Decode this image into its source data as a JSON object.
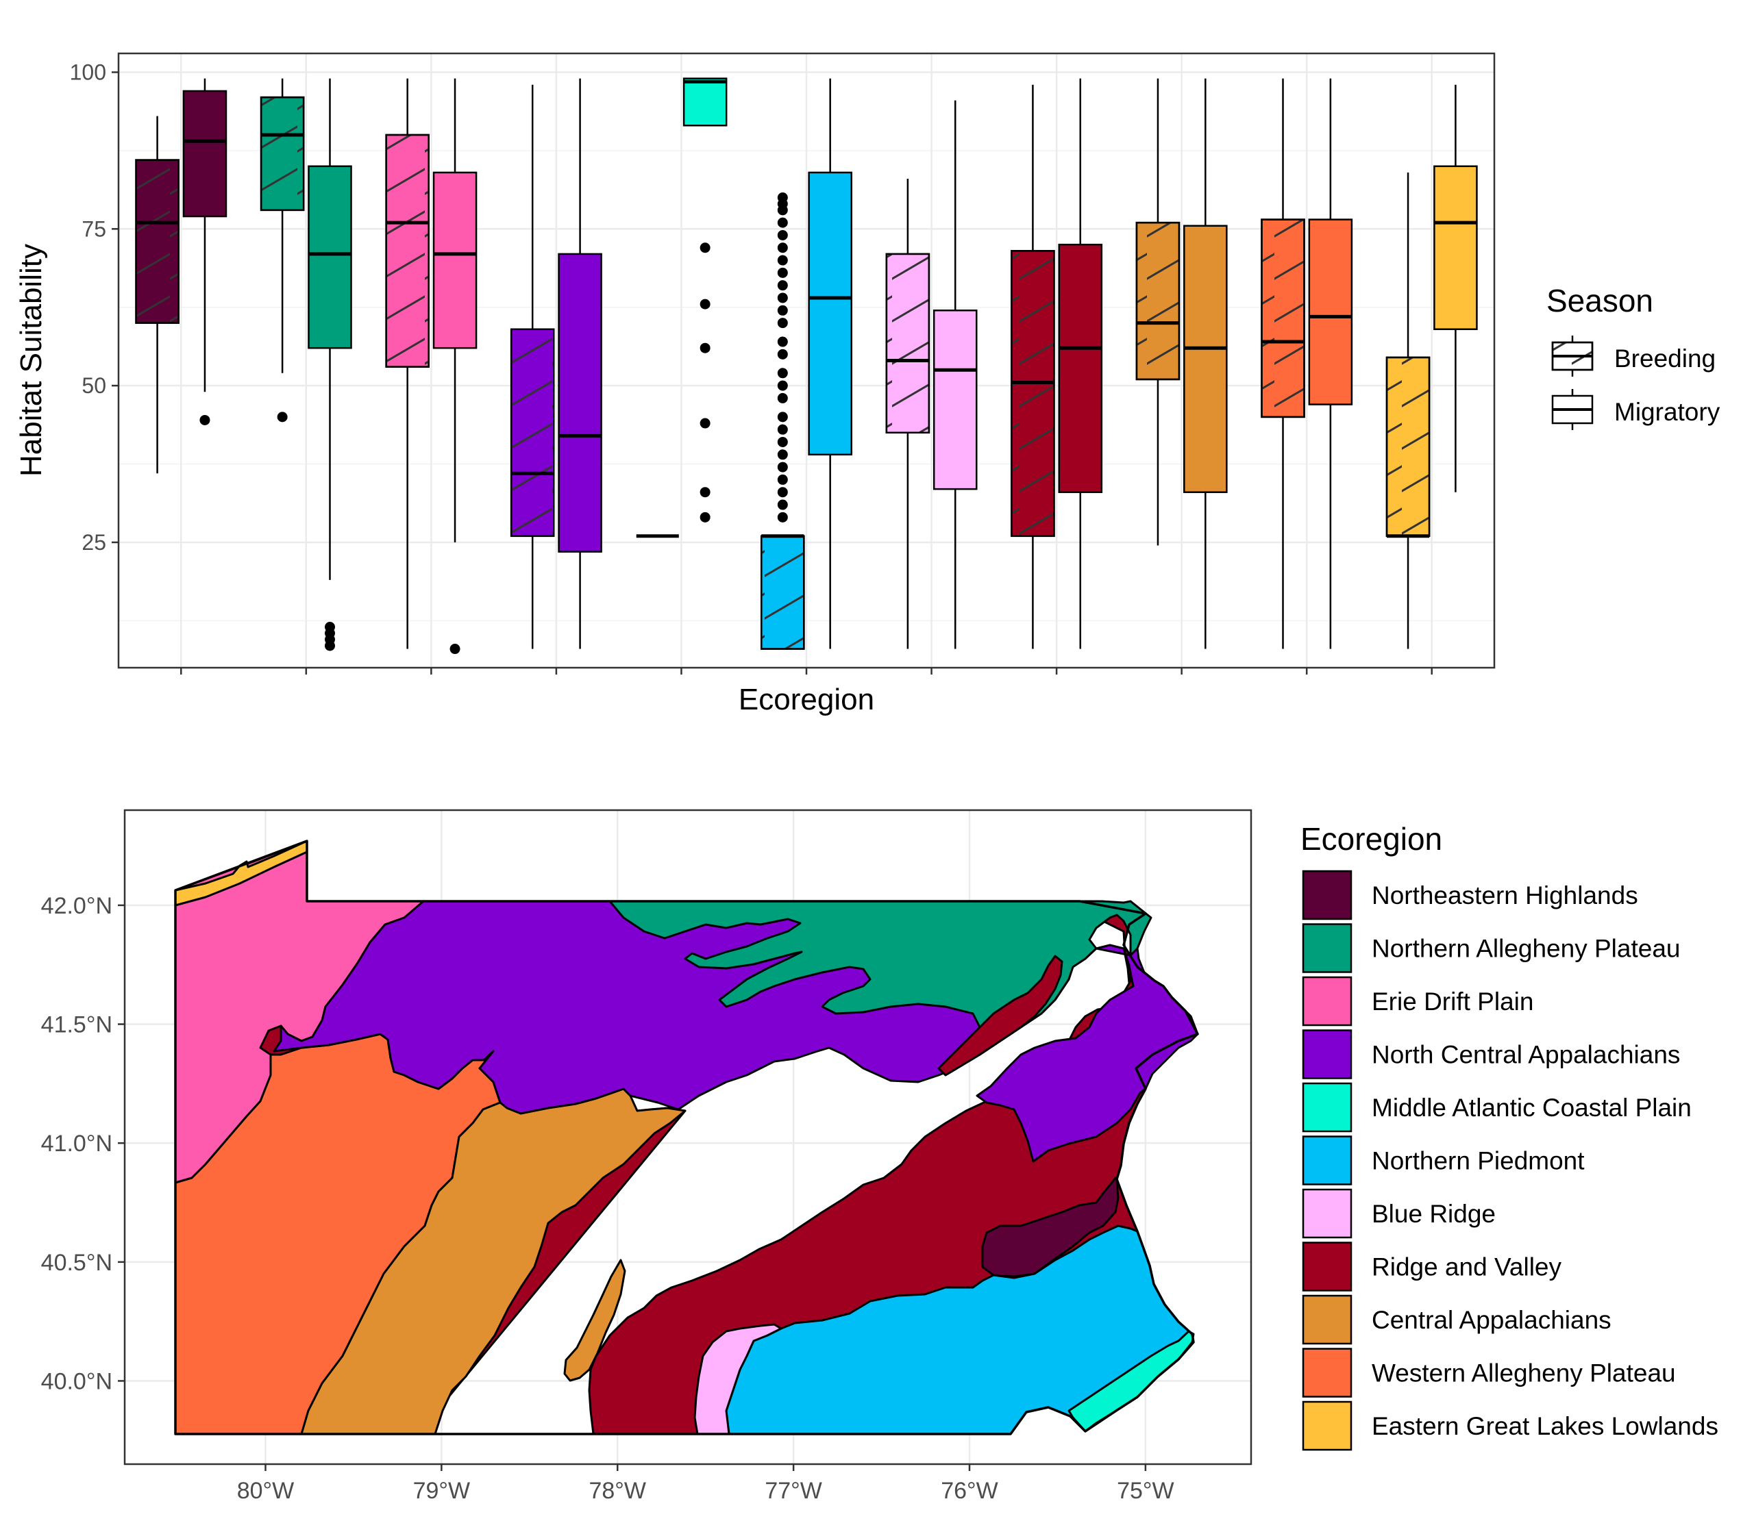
{
  "chart_data": [
    {
      "type": "boxplot",
      "xlabel": "Ecoregion",
      "ylabel": "Habitat Suitability",
      "ylim": [
        5,
        103
      ],
      "yticks": [
        25,
        50,
        75,
        100
      ],
      "grid": true,
      "legend": {
        "title": "Season",
        "position": "right",
        "entries": [
          {
            "label": "Breeding",
            "pattern": "hatched"
          },
          {
            "label": "Migratory",
            "pattern": "plain"
          }
        ]
      },
      "groups": [
        {
          "ecoregion": "Northeastern Highlands",
          "color": "#5C0038",
          "breeding": {
            "min": 36,
            "q1": 60,
            "median": 76,
            "q3": 86,
            "max": 93,
            "outliers": []
          },
          "migratory": {
            "min": 49,
            "q1": 77,
            "median": 89,
            "q3": 97,
            "max": 99,
            "outliers": [
              44.5
            ]
          }
        },
        {
          "ecoregion": "Northern Allegheny Plateau",
          "color": "#009F7C",
          "breeding": {
            "min": 52,
            "q1": 78,
            "median": 90,
            "q3": 96,
            "max": 99,
            "outliers": [
              45
            ]
          },
          "migratory": {
            "min": 19,
            "q1": 56,
            "median": 71,
            "q3": 85,
            "max": 99,
            "outliers": [
              8.5,
              9.5,
              10.5,
              11.5
            ]
          }
        },
        {
          "ecoregion": "Erie Drift Plain",
          "color": "#FF5BAE",
          "breeding": {
            "min": 8,
            "q1": 53,
            "median": 76,
            "q3": 90,
            "max": 99,
            "outliers": []
          },
          "migratory": {
            "min": 25,
            "q1": 56,
            "median": 71,
            "q3": 84,
            "max": 99,
            "outliers": [
              8
            ]
          }
        },
        {
          "ecoregion": "North Central Appalachians",
          "color": "#8000D2",
          "breeding": {
            "min": 8,
            "q1": 26,
            "median": 36,
            "q3": 59,
            "max": 98,
            "outliers": []
          },
          "migratory": {
            "min": 8,
            "q1": 23.5,
            "median": 42,
            "q3": 71,
            "max": 99,
            "outliers": []
          }
        },
        {
          "ecoregion": "Middle Atlantic Coastal Plain",
          "color": "#00F5D0",
          "breeding": {
            "min": 26,
            "q1": 26,
            "median": 26,
            "q3": 26,
            "max": 26,
            "outliers": []
          },
          "migratory": {
            "min": 91.5,
            "q1": 91.5,
            "median": 98.5,
            "q3": 99,
            "max": 99,
            "outliers": [
              72,
              63,
              56,
              44,
              33,
              29
            ]
          }
        },
        {
          "ecoregion": "Northern Piedmont",
          "color": "#00BFF6",
          "breeding": {
            "min": 8,
            "q1": 8,
            "median": 26,
            "q3": 26,
            "max": 26,
            "outliers": [
              29,
              31,
              33,
              35,
              37,
              39,
              41,
              43,
              45,
              48,
              50,
              52,
              55,
              57,
              60,
              62,
              64,
              66,
              68,
              70,
              72,
              74,
              76,
              78,
              79,
              80
            ]
          },
          "migratory": {
            "min": 8,
            "q1": 39,
            "median": 64,
            "q3": 84,
            "max": 99,
            "outliers": []
          }
        },
        {
          "ecoregion": "Blue Ridge",
          "color": "#FFB3FF",
          "breeding": {
            "min": 8,
            "q1": 42.5,
            "median": 54,
            "q3": 71,
            "max": 83,
            "outliers": []
          },
          "migratory": {
            "min": 8,
            "q1": 33.5,
            "median": 52.5,
            "q3": 62,
            "max": 95.5,
            "outliers": []
          }
        },
        {
          "ecoregion": "Ridge and Valley",
          "color": "#A00020",
          "breeding": {
            "min": 8,
            "q1": 26,
            "median": 50.5,
            "q3": 71.5,
            "max": 98,
            "outliers": []
          },
          "migratory": {
            "min": 8,
            "q1": 33,
            "median": 56,
            "q3": 72.5,
            "max": 99,
            "outliers": []
          }
        },
        {
          "ecoregion": "Central Appalachians",
          "color": "#E09030",
          "breeding": {
            "min": 24.5,
            "q1": 51,
            "median": 60,
            "q3": 76,
            "max": 99,
            "outliers": []
          },
          "migratory": {
            "min": 8,
            "q1": 33,
            "median": 56,
            "q3": 75.5,
            "max": 99,
            "outliers": []
          }
        },
        {
          "ecoregion": "Western Allegheny Plateau",
          "color": "#FF6A3D",
          "breeding": {
            "min": 8,
            "q1": 45,
            "median": 57,
            "q3": 76.5,
            "max": 99,
            "outliers": []
          },
          "migratory": {
            "min": 8,
            "q1": 47,
            "median": 61,
            "q3": 76.5,
            "max": 99,
            "outliers": []
          }
        },
        {
          "ecoregion": "Eastern Great Lakes Lowlands",
          "color": "#FFC03A",
          "breeding": {
            "min": 8,
            "q1": 26,
            "median": 26,
            "q3": 54.5,
            "max": 84,
            "outliers": []
          },
          "migratory": {
            "min": 33,
            "q1": 59,
            "median": 76,
            "q3": 85,
            "max": 98,
            "outliers": []
          }
        }
      ]
    },
    {
      "type": "map",
      "region": "Pennsylvania",
      "xticks": [
        "80°W",
        "79°W",
        "78°W",
        "77°W",
        "76°W",
        "75°W"
      ],
      "yticks": [
        "40.0°N",
        "40.5°N",
        "41.0°N",
        "41.5°N",
        "42.0°N"
      ],
      "xlim": [
        -80.8,
        -74.4
      ],
      "ylim": [
        39.65,
        42.4
      ],
      "grid": true,
      "legend": {
        "title": "Ecoregion",
        "position": "right",
        "entries": [
          {
            "label": "Northeastern Highlands",
            "color": "#5C0038"
          },
          {
            "label": "Northern Allegheny Plateau",
            "color": "#009F7C"
          },
          {
            "label": "Erie Drift Plain",
            "color": "#FF5BAE"
          },
          {
            "label": "North Central Appalachians",
            "color": "#8000D2"
          },
          {
            "label": "Middle Atlantic Coastal Plain",
            "color": "#00F5D0"
          },
          {
            "label": "Northern Piedmont",
            "color": "#00BFF6"
          },
          {
            "label": "Blue Ridge",
            "color": "#FFB3FF"
          },
          {
            "label": "Ridge and Valley",
            "color": "#A00020"
          },
          {
            "label": "Central Appalachians",
            "color": "#E09030"
          },
          {
            "label": "Western Allegheny Plateau",
            "color": "#FF6A3D"
          },
          {
            "label": "Eastern Great Lakes Lowlands",
            "color": "#FFC03A"
          }
        ]
      }
    }
  ]
}
